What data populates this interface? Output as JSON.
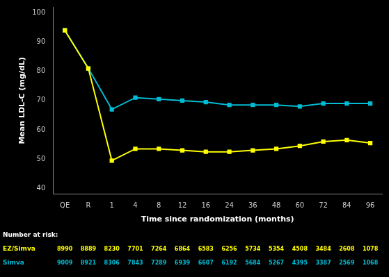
{
  "chart_data": {
    "type": "line",
    "xlabel": "Time since randomization (months)",
    "ylabel": "Mean LDL-C (mg/dL)",
    "categories": [
      "QE",
      "R",
      "1",
      "4",
      "8",
      "12",
      "16",
      "24",
      "36",
      "48",
      "60",
      "72",
      "84",
      "96"
    ],
    "series": [
      {
        "name": "Simva",
        "color": "#00bcd4",
        "marker": "square",
        "values": [
          94.0,
          81.0,
          67.0,
          71.0,
          70.5,
          70.0,
          69.5,
          68.5,
          68.5,
          68.5,
          68.0,
          69.0,
          69.0,
          69.0
        ],
        "number_at_risk": [
          9009,
          8921,
          8306,
          7843,
          7289,
          6939,
          6607,
          6192,
          5684,
          5267,
          4395,
          3387,
          2569,
          1068
        ]
      },
      {
        "name": "EZ/Simva",
        "color": "#ffff00",
        "marker": "square",
        "values": [
          94.0,
          81.0,
          49.5,
          53.5,
          53.5,
          53.0,
          52.5,
          52.5,
          53.0,
          53.5,
          54.5,
          56.0,
          56.5,
          55.5
        ],
        "number_at_risk": [
          8990,
          8889,
          8230,
          7701,
          7264,
          6864,
          6583,
          6256,
          5734,
          5354,
          4508,
          3484,
          2608,
          1078
        ]
      }
    ],
    "number_at_risk_label": "Number at risk:",
    "ylim": [
      38,
      102
    ],
    "yticks": [
      40,
      50,
      60,
      70,
      80,
      90,
      100
    ],
    "grid": false
  }
}
